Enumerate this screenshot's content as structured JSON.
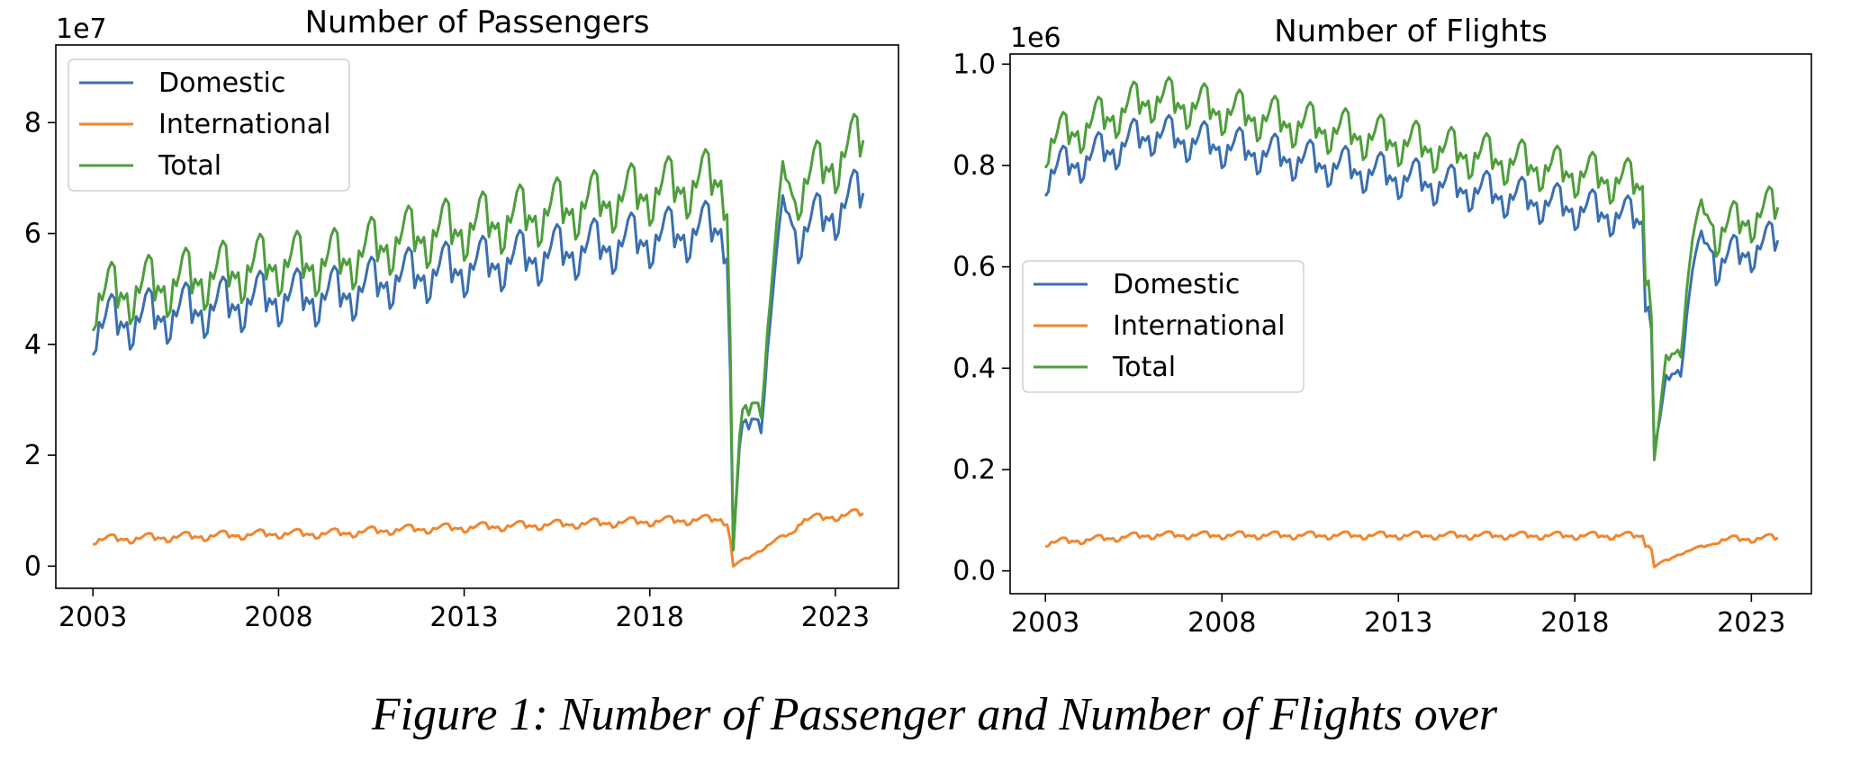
{
  "caption": "Figure 1: Number of Passenger and Number of Flights over",
  "colors": {
    "domestic": "#3a6fb0",
    "international": "#f0862e",
    "total": "#4e9e3c",
    "axis": "#000000"
  },
  "chart_data": [
    {
      "type": "line",
      "title": "Number of Passengers",
      "offset_label": "1e7",
      "xlabel": "",
      "ylabel": "",
      "x_range": [
        2003.0,
        2023.75
      ],
      "xlim": [
        2002.0,
        2024.7
      ],
      "ylim": [
        -0.4,
        9.4
      ],
      "x_ticks": [
        2003,
        2008,
        2013,
        2018,
        2023
      ],
      "y_ticks": [
        0,
        2,
        4,
        6,
        8
      ],
      "legend_position": "top-left",
      "series": [
        {
          "name": "Domestic",
          "color_key": "domestic",
          "start": 4.3,
          "slope": 0.105,
          "amp": 0.55,
          "covid": "passengers",
          "end": 6.7
        },
        {
          "name": "International",
          "color_key": "international",
          "start": 0.47,
          "slope": 0.022,
          "amp": 0.09,
          "covid": "intl_pass",
          "end": 0.95
        },
        {
          "name": "Total",
          "color_key": "total",
          "start": 4.8,
          "slope": 0.127,
          "amp": 0.62,
          "covid": "passengers_total",
          "end": 7.65
        }
      ]
    },
    {
      "type": "line",
      "title": "Number of Flights",
      "offset_label": "1e6",
      "xlabel": "",
      "ylabel": "",
      "x_range": [
        2003.0,
        2023.75
      ],
      "xlim": [
        2002.0,
        2024.7
      ],
      "ylim": [
        -0.045,
        1.02
      ],
      "x_ticks": [
        2003,
        2008,
        2013,
        2018,
        2023
      ],
      "y_ticks": [
        0.0,
        0.2,
        0.4,
        0.6,
        0.8,
        1.0
      ],
      "legend_position": "center-left",
      "series": [
        {
          "name": "Domestic",
          "color_key": "domestic",
          "start": 0.78,
          "peak": 0.86,
          "amp": 0.045,
          "covid": "flights",
          "end": 0.65
        },
        {
          "name": "International",
          "color_key": "international",
          "start": 0.055,
          "peak": 0.07,
          "amp": 0.008,
          "covid": "intl_flights",
          "end": 0.065
        },
        {
          "name": "Total",
          "color_key": "total",
          "start": 0.84,
          "peak": 0.93,
          "amp": 0.05,
          "covid": "flights_total",
          "end": 0.715
        }
      ]
    }
  ]
}
